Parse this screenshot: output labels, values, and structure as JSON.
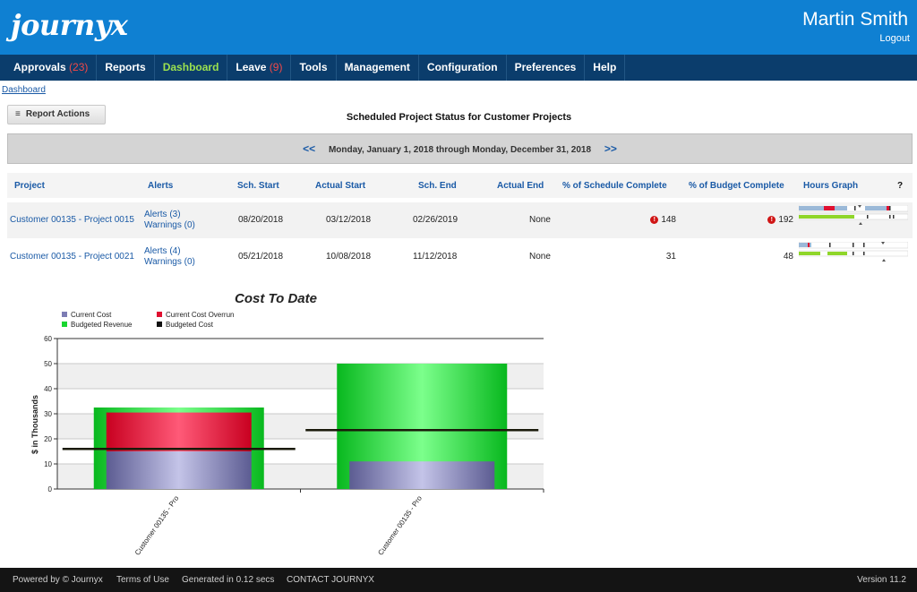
{
  "header": {
    "logo": "journyx",
    "user_name": "Martin Smith",
    "logout": "Logout"
  },
  "nav": {
    "items": [
      {
        "label": "Approvals",
        "count": "(23)"
      },
      {
        "label": "Reports",
        "count": ""
      },
      {
        "label": "Dashboard",
        "count": "",
        "active": true
      },
      {
        "label": "Leave",
        "count": "(9)"
      },
      {
        "label": "Tools",
        "count": ""
      },
      {
        "label": "Management",
        "count": ""
      },
      {
        "label": "Configuration",
        "count": ""
      },
      {
        "label": "Preferences",
        "count": ""
      },
      {
        "label": "Help",
        "count": ""
      }
    ]
  },
  "breadcrumb": "Dashboard",
  "report_actions": "Report Actions",
  "report_title": "Scheduled Project Status for Customer Projects",
  "date_range": {
    "prev": "<<",
    "text": "Monday, January 1, 2018 through Monday, December 31, 2018",
    "next": ">>"
  },
  "table": {
    "columns": [
      "Project",
      "Alerts",
      "Sch. Start",
      "Actual Start",
      "Sch. End",
      "Actual End",
      "% of Schedule Complete",
      "% of Budget Complete",
      "Hours Graph",
      "?"
    ],
    "rows": [
      {
        "project": "Customer 00135 - Project 0015",
        "alerts": "Alerts (3)",
        "warnings": "Warnings (0)",
        "sch_start": "08/20/2018",
        "actual_start": "03/12/2018",
        "sch_end": "02/26/2019",
        "actual_end": "None",
        "sched_pct": "148",
        "sched_alert": true,
        "budget_pct": "192",
        "budget_alert": true
      },
      {
        "project": "Customer 00135 - Project 0021",
        "alerts": "Alerts (4)",
        "warnings": "Warnings (0)",
        "sch_start": "05/21/2018",
        "actual_start": "10/08/2018",
        "sch_end": "11/12/2018",
        "actual_end": "None",
        "sched_pct": "31",
        "sched_alert": false,
        "budget_pct": "48",
        "budget_alert": false
      }
    ]
  },
  "colors": {
    "header_blue": "#0f80d2",
    "nav_navy": "#0b3d6c",
    "active_green": "#9be14f",
    "count_red": "#f04848",
    "current_cost": "#8b8bc0",
    "overrun": "#e01030",
    "budgeted_revenue": "#19d630",
    "budgeted_cost": "#111111"
  },
  "chart_data": {
    "type": "bar",
    "title": "Cost To Date",
    "ylabel": "$ in Thousands",
    "xlabel": "",
    "ylim": [
      0,
      60
    ],
    "yticks": [
      0,
      10,
      20,
      30,
      40,
      50,
      60
    ],
    "categories": [
      "Customer 00135 - Pro",
      "Customer 00135 - Pro"
    ],
    "series": [
      {
        "name": "Current Cost",
        "values": [
          15,
          11
        ]
      },
      {
        "name": "Current Cost Overrun",
        "values": [
          15.5,
          0
        ]
      },
      {
        "name": "Budgeted Revenue",
        "values": [
          32.5,
          50
        ]
      },
      {
        "name": "Budgeted Cost",
        "values": [
          16,
          23.5
        ]
      }
    ],
    "legend": "top-left",
    "grid": true
  },
  "footer": {
    "powered": "Powered by © Journyx",
    "terms": "Terms of Use",
    "generated": "Generated in 0.12 secs",
    "contact": "CONTACT JOURNYX",
    "version": "Version 11.2"
  }
}
